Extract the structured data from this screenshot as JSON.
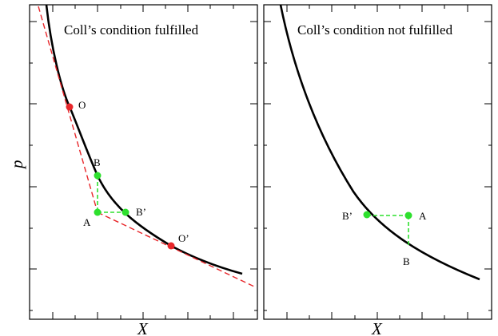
{
  "colors": {
    "curve": "#000000",
    "tangent": "#e8262a",
    "guide": "#2ee02e",
    "point_red": "#e8262a",
    "point_green": "#2ee02e"
  },
  "axes": {
    "xlabel": "X",
    "ylabel": "p"
  },
  "panels": [
    {
      "title": "Coll’s condition fulfilled",
      "points": [
        {
          "label": "O",
          "color": "red"
        },
        {
          "label": "B",
          "color": "green"
        },
        {
          "label": "A",
          "color": "green"
        },
        {
          "label": "B’",
          "color": "green"
        },
        {
          "label": "O’",
          "color": "red"
        }
      ]
    },
    {
      "title": "Coll’s condition not fulfilled",
      "points": [
        {
          "label": "B’",
          "color": "green"
        },
        {
          "label": "A",
          "color": "green"
        },
        {
          "label": "B",
          "color": "green"
        }
      ]
    }
  ]
}
